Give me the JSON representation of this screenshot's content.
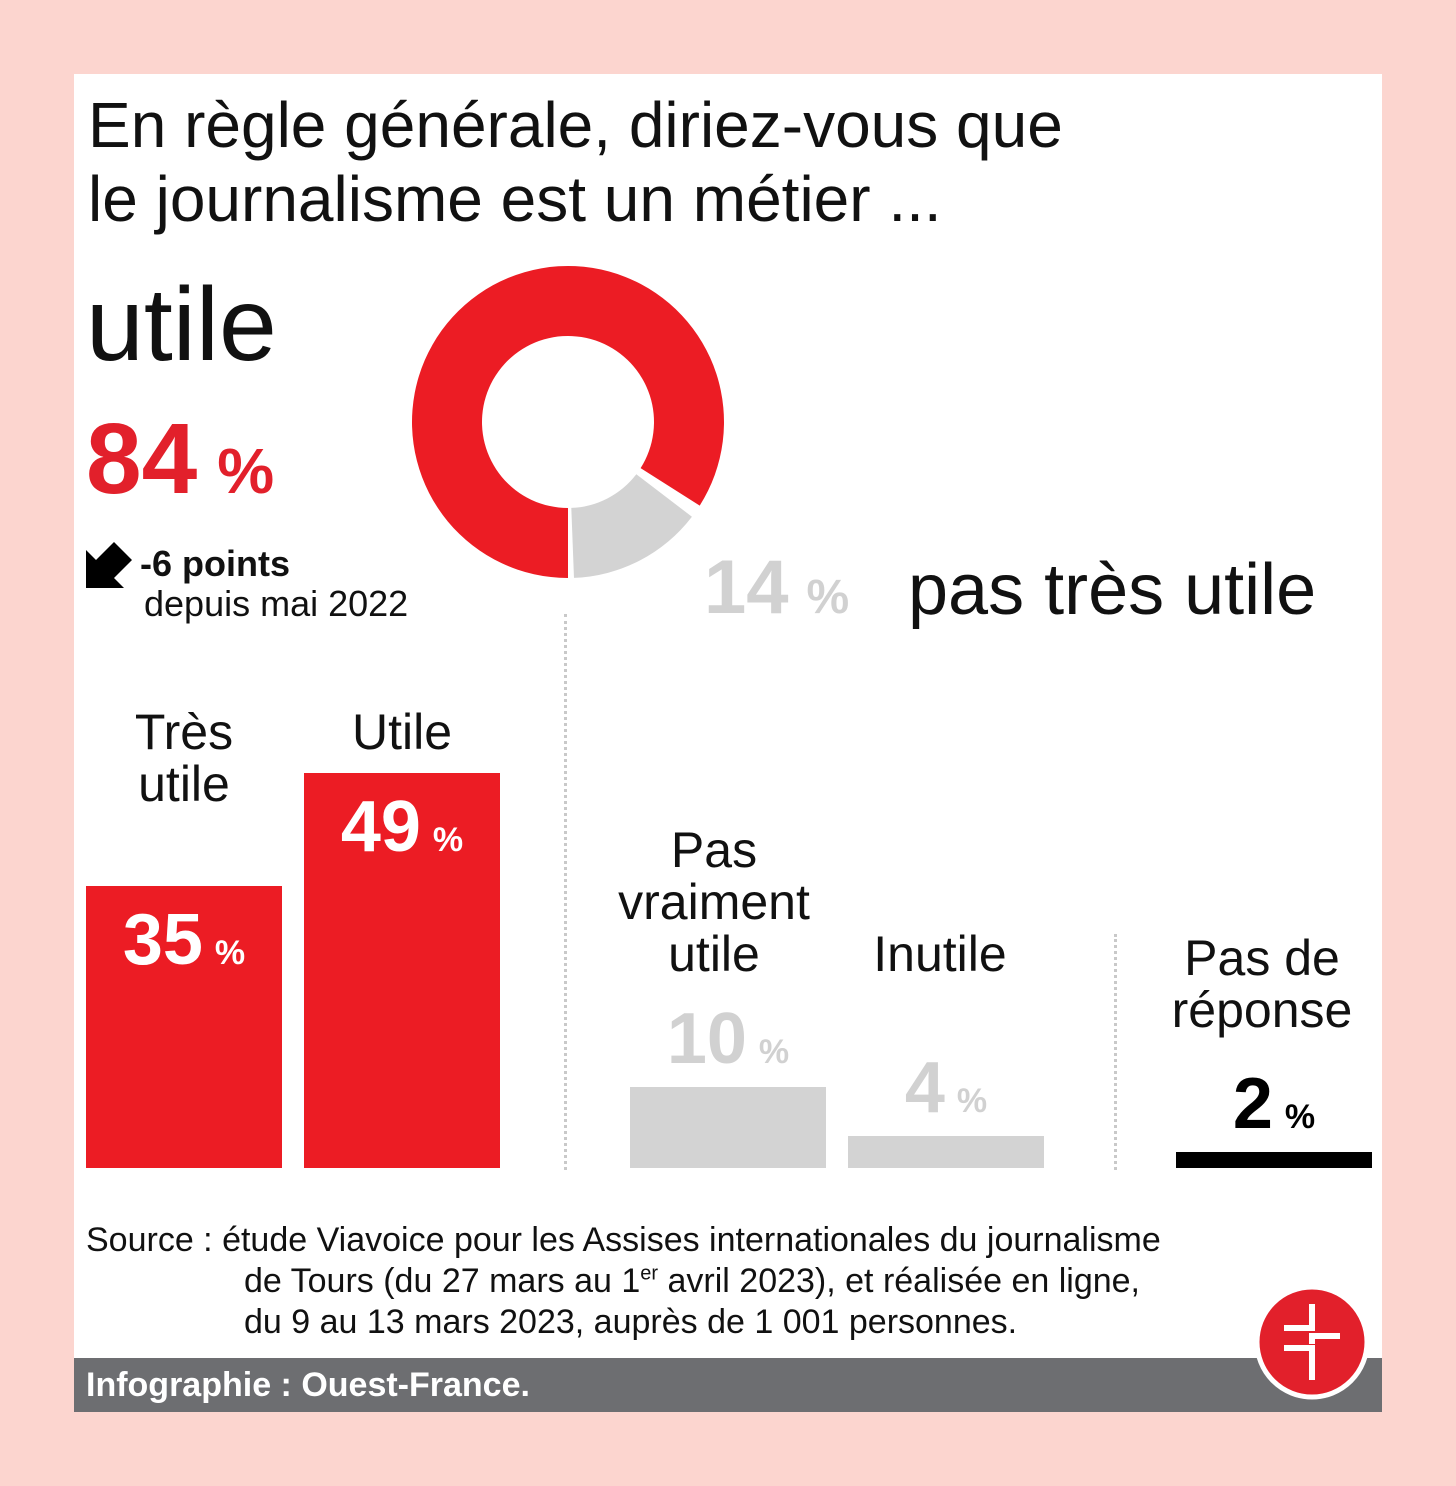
{
  "title_line1": "En règle générale, diriez-vous que",
  "title_line2": "le journalisme est un métier ...",
  "positive": {
    "label": "utile",
    "value": "84",
    "unit": "%",
    "change_value": "-6 points",
    "change_since": "depuis mai 2022"
  },
  "negative": {
    "label": "pas très utile",
    "value": "14",
    "unit": "%"
  },
  "categories": [
    {
      "label_lines": [
        "Très",
        "utile"
      ],
      "value": "35",
      "unit": "%"
    },
    {
      "label_lines": [
        "Utile"
      ],
      "value": "49",
      "unit": "%"
    },
    {
      "label_lines": [
        "Pas",
        "vraiment",
        "utile"
      ],
      "value": "10",
      "unit": "%"
    },
    {
      "label_lines": [
        "Inutile"
      ],
      "value": "4",
      "unit": "%"
    },
    {
      "label_lines": [
        "Pas de",
        "réponse"
      ],
      "value": "2",
      "unit": "%"
    }
  ],
  "source": {
    "line1": "Source : étude Viavoice pour les Assises internationales du journalisme",
    "line2_a": "de Tours (du 27 mars au 1",
    "line2_sup": "er",
    "line2_b": " avril 2023), et réalisée en ligne,",
    "line3": "du 9 au 13 mars 2023, auprès de 1 001 personnes."
  },
  "credit": "Infographie :  Ouest-France.",
  "colors": {
    "background": "#fcd5cf",
    "red": "#ec1c24",
    "grey": "#d3d3d3",
    "black": "#000000",
    "footer": "#6d6e71"
  },
  "chart_data": [
    {
      "type": "pie",
      "labels": [
        "utile",
        "pas très utile"
      ],
      "values": [
        84,
        14
      ]
    },
    {
      "type": "bar",
      "categories": [
        "Très utile",
        "Utile",
        "Pas vraiment utile",
        "Inutile",
        "Pas de réponse"
      ],
      "values": [
        35,
        49,
        10,
        4,
        2
      ],
      "unit": "%",
      "colors": [
        "#ec1c24",
        "#ec1c24",
        "#d3d3d3",
        "#d3d3d3",
        "#000000"
      ]
    }
  ]
}
